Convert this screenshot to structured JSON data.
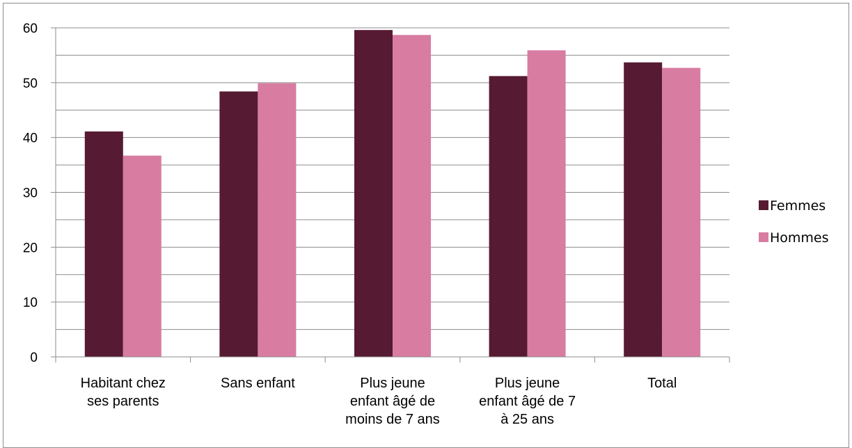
{
  "chart_data": {
    "type": "bar",
    "categories": [
      [
        "Habitant chez",
        "ses parents"
      ],
      [
        "Sans enfant"
      ],
      [
        "Plus jeune",
        "enfant âgé de",
        "moins de 7 ans"
      ],
      [
        "Plus jeune",
        "enfant âgé de 7",
        "à 25 ans"
      ],
      [
        "Total"
      ]
    ],
    "series": [
      {
        "name": "Femmes",
        "color": "#561a32",
        "values": [
          41.1,
          48.4,
          59.6,
          51.2,
          53.7
        ]
      },
      {
        "name": "Hommes",
        "color": "#d87ca2",
        "values": [
          36.7,
          49.9,
          58.7,
          55.9,
          52.7
        ]
      }
    ],
    "yticks": [
      "0",
      "10",
      "20",
      "30",
      "40",
      "50",
      "60"
    ],
    "ylim": [
      0,
      60
    ],
    "minor_gridlines_every": 5,
    "legend_position": "right",
    "title": "",
    "xlabel": "",
    "ylabel": ""
  }
}
